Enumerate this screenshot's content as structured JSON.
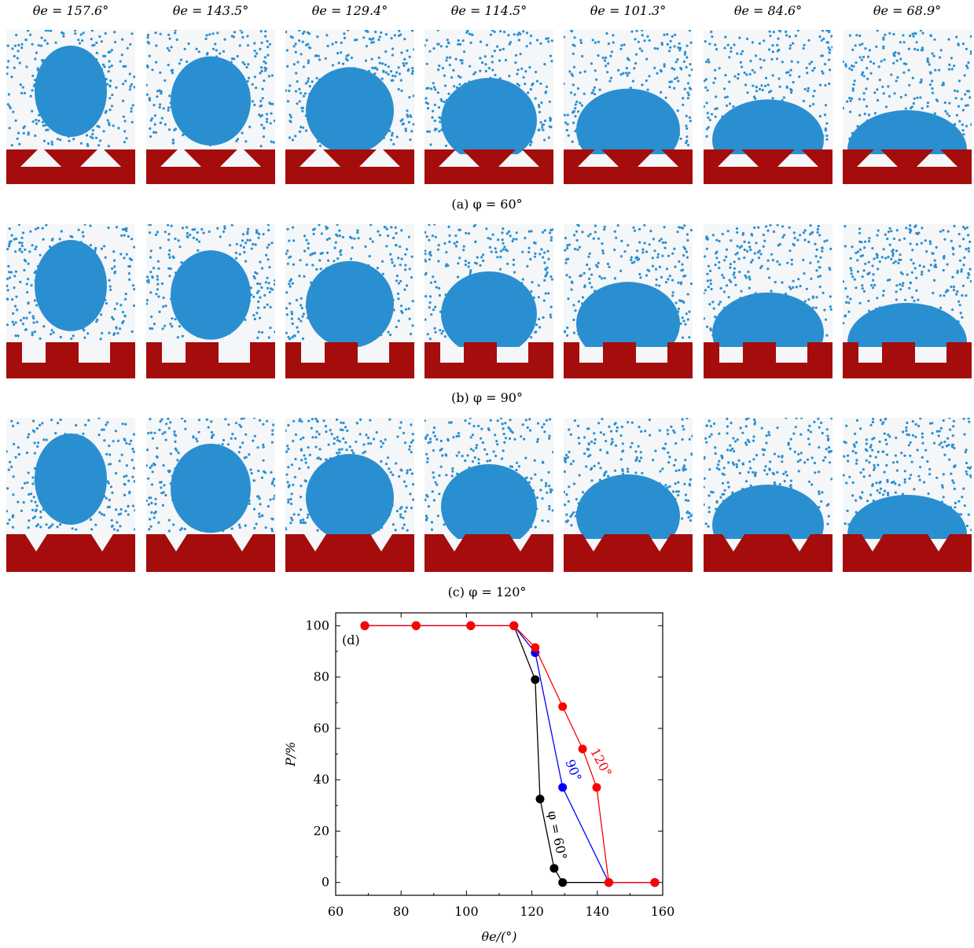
{
  "column_labels": [
    "θe = 157.6°",
    "θe = 143.5°",
    "θe = 129.4°",
    "θe = 114.5°",
    "θe = 101.3°",
    "θe = 84.6°",
    "θe = 68.9°"
  ],
  "rows": [
    {
      "caption": "(a) φ = 60°",
      "groove": "inverted-trapezoid"
    },
    {
      "caption": "(b)  φ = 90°",
      "groove": "rectangular"
    },
    {
      "caption": "(c) φ = 120°",
      "groove": "v-notch"
    }
  ],
  "colors": {
    "water": "#2a8fd0",
    "substrate": "#a50c0c",
    "series60": "#000000",
    "series90": "#0000ff",
    "series120": "#ff0000"
  },
  "chart_data": {
    "type": "line",
    "panel_label": "(d)",
    "xlabel": "θe/(°)",
    "ylabel": "P/%",
    "xlim": [
      60,
      160
    ],
    "ylim": [
      -5,
      105
    ],
    "xticks": [
      "60",
      "80",
      "100",
      "120",
      "140",
      "160"
    ],
    "yticks": [
      "0",
      "20",
      "40",
      "60",
      "80",
      "100"
    ],
    "series": [
      {
        "name": "φ = 60°",
        "color": "#000000",
        "x": [
          68.9,
          84.6,
          101.3,
          114.5,
          121.0,
          122.5,
          126.8,
          129.4,
          143.5,
          157.6
        ],
        "y": [
          100,
          100,
          100,
          100,
          79,
          32.5,
          5.5,
          0,
          0,
          0
        ]
      },
      {
        "name": "90°",
        "color": "#0000ff",
        "x": [
          68.9,
          84.6,
          101.3,
          114.5,
          121.0,
          129.4,
          143.5,
          157.6
        ],
        "y": [
          100,
          100,
          100,
          100,
          89.5,
          37,
          0,
          0
        ]
      },
      {
        "name": "120°",
        "color": "#ff0000",
        "x": [
          68.9,
          84.6,
          101.3,
          114.5,
          121.0,
          129.4,
          135.5,
          139.8,
          143.5,
          157.6
        ],
        "y": [
          100,
          100,
          100,
          100,
          91.5,
          68.5,
          52,
          37,
          0,
          0
        ]
      }
    ]
  }
}
